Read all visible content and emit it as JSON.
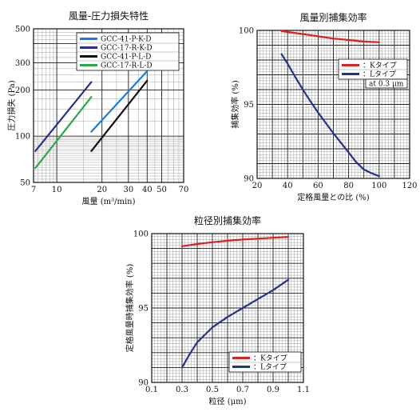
{
  "chart_data": [
    {
      "type": "line",
      "title": "風量-圧力損失特性",
      "xlabel": "風量 (m³/min)",
      "ylabel": "圧力損失 (Pa)",
      "xscale": "log",
      "yscale": "log",
      "xlim": [
        7,
        70
      ],
      "ylim": [
        50,
        500
      ],
      "xticks": [
        7,
        10,
        20,
        30,
        40,
        50,
        70
      ],
      "yticks": [
        50,
        100,
        200,
        300,
        500
      ],
      "grid": true,
      "legend": "top-right",
      "series": [
        {
          "name": "GCC-41-P-K-D",
          "color": "#1a7fd4",
          "x": [
            17,
            40
          ],
          "y": [
            107,
            265
          ]
        },
        {
          "name": "GCC-17-R-K-D",
          "color": "#2a2f8c",
          "x": [
            7.2,
            17
          ],
          "y": [
            80,
            225
          ]
        },
        {
          "name": "GCC-41-P-L-D",
          "color": "#111111",
          "x": [
            17,
            40
          ],
          "y": [
            80,
            230
          ]
        },
        {
          "name": "GCC-17-R-L-D",
          "color": "#2aa84a",
          "x": [
            7.2,
            17
          ],
          "y": [
            62,
            180
          ]
        }
      ]
    },
    {
      "type": "line",
      "title": "風量別捕集効率",
      "xlabel": "定格風量との比 (%)",
      "ylabel": "捕集効率 (%)",
      "xlim": [
        20,
        120
      ],
      "ylim": [
        90,
        100
      ],
      "xticks": [
        20,
        40,
        60,
        80,
        100,
        120
      ],
      "yticks": [
        90,
        95,
        100
      ],
      "grid": true,
      "legend": "top-right",
      "annotation": "at 0.3 μm",
      "series": [
        {
          "name": "：Kタイプ",
          "color": "#e02020",
          "x": [
            36,
            50,
            60,
            70,
            80,
            90,
            100
          ],
          "y": [
            99.95,
            99.75,
            99.6,
            99.45,
            99.35,
            99.25,
            99.2
          ]
        },
        {
          "name": "：Lタイプ",
          "color": "#23338c",
          "x": [
            36,
            40,
            45,
            50,
            55,
            60,
            65,
            70,
            75,
            80,
            85,
            90,
            95,
            100
          ],
          "y": [
            98.4,
            97.75,
            96.85,
            96.0,
            95.2,
            94.45,
            93.75,
            93.05,
            92.4,
            91.75,
            91.1,
            90.6,
            90.35,
            90.15
          ]
        }
      ]
    },
    {
      "type": "line",
      "title": "粒径別捕集効率",
      "xlabel": "粒径 (μm)",
      "ylabel": "定格風量時捕集効率 (%)",
      "xlim": [
        0.1,
        1.1
      ],
      "ylim": [
        90,
        100
      ],
      "xticks": [
        0.1,
        0.3,
        0.5,
        0.7,
        0.9,
        1.1
      ],
      "yticks": [
        90,
        95,
        100
      ],
      "grid": true,
      "legend": "bottom-right",
      "series": [
        {
          "name": "：Kタイプ",
          "color": "#e02020",
          "x": [
            0.3,
            0.4,
            0.5,
            0.6,
            0.7,
            0.8,
            0.9,
            1.0
          ],
          "y": [
            99.15,
            99.3,
            99.42,
            99.52,
            99.6,
            99.66,
            99.72,
            99.78
          ]
        },
        {
          "name": "：Lタイプ",
          "color": "#23338c",
          "x": [
            0.3,
            0.35,
            0.4,
            0.45,
            0.5,
            0.6,
            0.7,
            0.8,
            0.9,
            1.0
          ],
          "y": [
            91.0,
            91.9,
            92.7,
            93.2,
            93.7,
            94.4,
            95.0,
            95.6,
            96.2,
            96.9
          ]
        }
      ]
    }
  ]
}
